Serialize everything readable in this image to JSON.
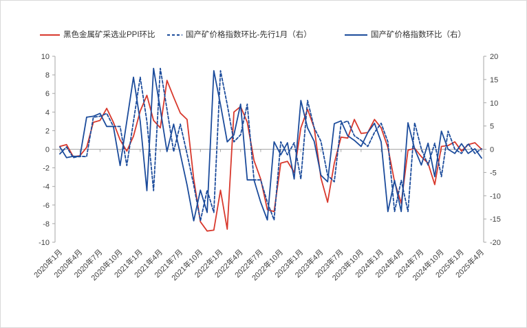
{
  "legend": {
    "items": [
      {
        "label": "黑色金属矿采选业PPI环比",
        "line": "solid",
        "color": "#d8382c"
      },
      {
        "label": "国产矿价格指数环比-先行1月（右）",
        "line": "dashed",
        "color": "#1b4b9b"
      },
      {
        "label": "国产矿价格指数环比（右）",
        "line": "solid",
        "color": "#1b4b9b"
      }
    ]
  },
  "colors": {
    "ppi_red": "#d8382c",
    "index_blue": "#1b4b9b",
    "axis_line": "#a6a6a6",
    "tick_label": "#404040",
    "frame_border": "#d9d9d9",
    "background": "#ffffff"
  },
  "chart_data": {
    "type": "line",
    "start_month": "2020年1月",
    "end_month": "2025年4月",
    "months_per_tick": 3,
    "x_tick_labels": [
      "2020年1月",
      "2020年4月",
      "2020年7月",
      "2020年10月",
      "2021年1月",
      "2021年4月",
      "2021年7月",
      "2021年10月",
      "2022年1月",
      "2022年4月",
      "2022年7月",
      "2022年10月",
      "2023年1月",
      "2023年4月",
      "2023年7月",
      "2023年10月",
      "2024年1月",
      "2024年4月",
      "2024年7月",
      "2024年10月",
      "2025年1月",
      "2025年4月"
    ],
    "left_axis": {
      "ticks": [
        "10",
        "8",
        "6",
        "4",
        "2",
        "0",
        "-2",
        "-4",
        "-6",
        "-8",
        "-10"
      ],
      "range": [
        -10,
        10
      ]
    },
    "right_axis": {
      "ticks": [
        "20",
        "15",
        "10",
        "5",
        "0",
        "-5",
        "-10",
        "-15",
        "-20"
      ],
      "range": [
        -20,
        20
      ]
    },
    "grid": "zero-line-only",
    "legend_position": "top",
    "series": [
      {
        "name": "黑色金属矿采选业PPI环比",
        "axis": "left",
        "line": "solid",
        "color": "#d8382c",
        "values": [
          0.3,
          0.5,
          -0.8,
          -0.7,
          0.2,
          2.9,
          3.1,
          4.4,
          2.9,
          1.0,
          -0.2,
          1.4,
          4.1,
          5.8,
          3.1,
          2.3,
          7.4,
          5.6,
          3.9,
          3.2,
          -3.2,
          -7.8,
          -8.8,
          -8.7,
          -4.4,
          -8.6,
          4.0,
          4.6,
          2.9,
          -1.2,
          -3.2,
          -6.5,
          -6.7,
          -1.5,
          -1.3,
          -2.5,
          2.3,
          4.3,
          2.3,
          -3.1,
          -5.7,
          -1.5,
          1.3,
          1.2,
          3.2,
          1.7,
          1.8,
          3.2,
          2.3,
          0.2,
          -3.5,
          -5.8,
          -0.1,
          0.1,
          -0.8,
          -1.5,
          -3.8,
          0.3,
          0.4,
          0.8,
          -0.2,
          0.5,
          0.7,
          0.0
        ]
      },
      {
        "name": "国产矿价格指数环比-先行1月（右）",
        "axis": "right",
        "line": "dashed",
        "color": "#1b4b9b",
        "values": [
          -1.0,
          0.5,
          -1.8,
          -1.5,
          -1.6,
          6.9,
          7.1,
          7.7,
          4.9,
          4.9,
          -3.5,
          6.0,
          15.5,
          6.0,
          -8.9,
          17.4,
          8.6,
          -0.5,
          5.4,
          -1.0,
          -7.7,
          -15.4,
          -8.8,
          -13.6,
          16.9,
          9.6,
          1.6,
          3.1,
          9.7,
          -6.6,
          -6.6,
          -11.4,
          -15.2,
          1.6,
          -1.2,
          1.4,
          -6.4,
          10.5,
          4.6,
          1.7,
          -5.6,
          -7.0,
          5.5,
          6.1,
          2.9,
          1.9,
          0.6,
          3.6,
          5.6,
          1.6,
          -13.4,
          -6.7,
          -13.4,
          5.7,
          0.1,
          -3.4,
          1.3,
          -5.9,
          3.9,
          0.0,
          -0.9,
          1.2,
          -0.9,
          0.1
        ]
      },
      {
        "name": "国产矿价格指数环比（右）",
        "axis": "right",
        "line": "solid",
        "color": "#1b4b9b",
        "values": [
          0.5,
          -1.8,
          -1.5,
          -1.6,
          6.9,
          7.1,
          7.7,
          4.9,
          4.9,
          -3.5,
          6.0,
          15.5,
          6.0,
          -8.9,
          17.4,
          8.6,
          -0.5,
          5.4,
          -1.0,
          -7.7,
          -15.4,
          -8.8,
          -13.6,
          16.9,
          9.6,
          1.6,
          3.1,
          9.7,
          -6.6,
          -6.6,
          -11.4,
          -15.2,
          1.6,
          -1.2,
          1.4,
          -6.4,
          10.5,
          4.6,
          1.7,
          -5.6,
          -7.0,
          5.5,
          6.1,
          2.9,
          1.9,
          0.6,
          3.6,
          5.6,
          1.6,
          -13.4,
          -6.7,
          -13.4,
          5.7,
          0.1,
          -3.4,
          1.3,
          -5.9,
          3.9,
          0.0,
          -0.9,
          1.2,
          -0.9,
          0.1,
          -1.9
        ]
      }
    ]
  }
}
